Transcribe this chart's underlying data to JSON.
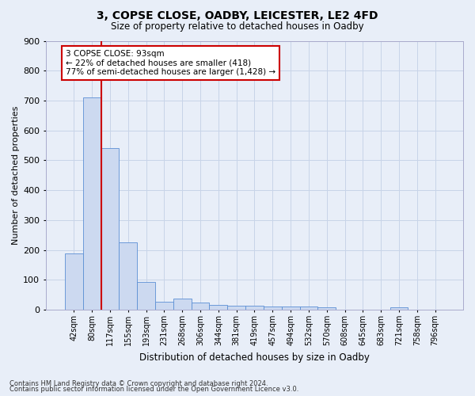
{
  "title1": "3, COPSE CLOSE, OADBY, LEICESTER, LE2 4FD",
  "title2": "Size of property relative to detached houses in Oadby",
  "xlabel": "Distribution of detached houses by size in Oadby",
  "ylabel": "Number of detached properties",
  "categories": [
    "42sqm",
    "80sqm",
    "117sqm",
    "155sqm",
    "193sqm",
    "231sqm",
    "268sqm",
    "306sqm",
    "344sqm",
    "381sqm",
    "419sqm",
    "457sqm",
    "494sqm",
    "532sqm",
    "570sqm",
    "608sqm",
    "645sqm",
    "683sqm",
    "721sqm",
    "758sqm",
    "796sqm"
  ],
  "values": [
    190,
    710,
    540,
    225,
    93,
    28,
    37,
    25,
    16,
    13,
    13,
    12,
    11,
    10,
    9,
    0,
    0,
    0,
    9,
    0,
    0
  ],
  "bar_color": "#ccd9f0",
  "bar_edge_color": "#5b8fd4",
  "annotation_box_text1": "3 COPSE CLOSE: 93sqm",
  "annotation_box_text2": "← 22% of detached houses are smaller (418)",
  "annotation_box_text3": "77% of semi-detached houses are larger (1,428) →",
  "annotation_box_color": "#ffffff",
  "annotation_box_edge_color": "#cc0000",
  "vline_color": "#cc0000",
  "vline_x": 1.5,
  "ylim": [
    0,
    900
  ],
  "yticks": [
    0,
    100,
    200,
    300,
    400,
    500,
    600,
    700,
    800,
    900
  ],
  "grid_color": "#c8d4e8",
  "background_color": "#e8eef8",
  "footer1": "Contains HM Land Registry data © Crown copyright and database right 2024.",
  "footer2": "Contains public sector information licensed under the Open Government Licence v3.0."
}
